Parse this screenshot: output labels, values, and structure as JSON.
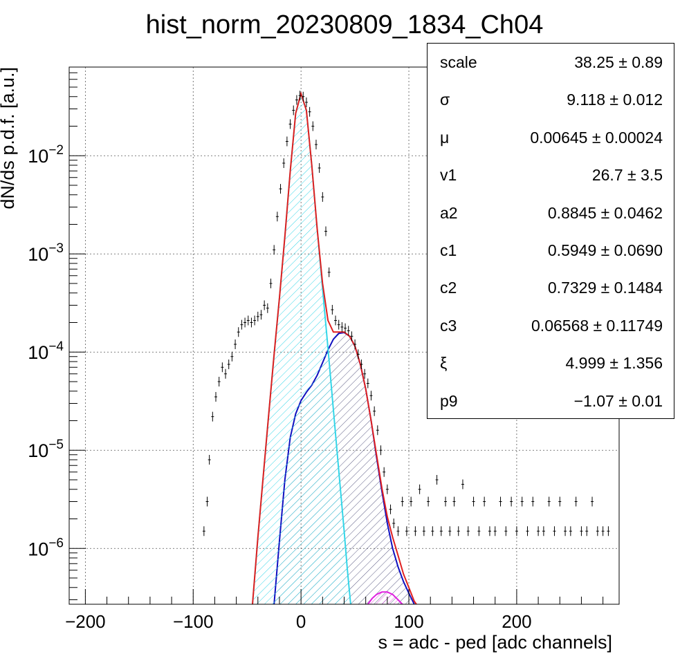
{
  "chart_data": {
    "type": "histogram",
    "title": "hist_norm_20230809_1834_Ch04",
    "xlabel": "s = adc - ped [adc channels]",
    "ylabel": "dN/ds p.d.f. [a.u.]",
    "xlim": [
      -215,
      295
    ],
    "ylim": [
      2.7e-07,
      0.08
    ],
    "yscale": "log",
    "grid": true,
    "xticks": [
      -200,
      -100,
      0,
      100,
      200
    ],
    "xtick_labels": [
      "−200",
      "−100",
      "0",
      "100",
      "200"
    ],
    "yticks": [
      1e-06,
      1e-05,
      0.0001,
      0.001,
      0.01
    ],
    "ytick_labels": [
      {
        "base": "10",
        "exp": "−6"
      },
      {
        "base": "10",
        "exp": "−5"
      },
      {
        "base": "10",
        "exp": "−4"
      },
      {
        "base": "10",
        "exp": "−3"
      },
      {
        "base": "10",
        "exp": "−2"
      }
    ],
    "data_histogram": {
      "color": "#000000",
      "points": [
        [
          -90,
          1.5e-06
        ],
        [
          -87,
          3e-06
        ],
        [
          -85,
          8e-06
        ],
        [
          -82,
          2.2e-05
        ],
        [
          -79,
          3.5e-05
        ],
        [
          -76,
          5e-05
        ],
        [
          -73,
          7e-05
        ],
        [
          -70,
          6e-05
        ],
        [
          -67,
          7.5e-05
        ],
        [
          -64,
          9e-05
        ],
        [
          -61,
          0.00012
        ],
        [
          -58,
          0.00016
        ],
        [
          -55,
          0.00019
        ],
        [
          -52,
          0.0002
        ],
        [
          -49,
          0.00021
        ],
        [
          -46,
          0.0002
        ],
        [
          -43,
          0.00021
        ],
        [
          -40,
          0.00023
        ],
        [
          -37,
          0.00024
        ],
        [
          -34,
          0.0003
        ],
        [
          -31,
          0.00028
        ],
        [
          -28,
          0.0005
        ],
        [
          -25,
          0.0011
        ],
        [
          -22,
          0.0024
        ],
        [
          -19,
          0.0046
        ],
        [
          -16,
          0.0084
        ],
        [
          -13,
          0.014
        ],
        [
          -10,
          0.021
        ],
        [
          -7,
          0.029
        ],
        [
          -4,
          0.037
        ],
        [
          -1,
          0.041
        ],
        [
          2,
          0.04
        ],
        [
          5,
          0.035
        ],
        [
          8,
          0.028
        ],
        [
          11,
          0.02
        ],
        [
          14,
          0.013
        ],
        [
          17,
          0.0075
        ],
        [
          20,
          0.0038
        ],
        [
          23,
          0.0017
        ],
        [
          26,
          0.00065
        ],
        [
          29,
          0.00027
        ],
        [
          32,
          0.00021
        ],
        [
          35,
          0.00019
        ],
        [
          38,
          0.00018
        ],
        [
          41,
          0.000175
        ],
        [
          44,
          0.000165
        ],
        [
          47,
          0.000145
        ],
        [
          50,
          0.00012
        ],
        [
          53,
          9.5e-05
        ],
        [
          56,
          7.5e-05
        ],
        [
          59,
          6e-05
        ],
        [
          62,
          4.8e-05
        ],
        [
          65,
          3.6e-05
        ],
        [
          68,
          2.5e-05
        ],
        [
          71,
          1.6e-05
        ],
        [
          74,
          1e-05
        ],
        [
          77,
          6e-06
        ],
        [
          80,
          4e-06
        ],
        [
          83,
          2.5e-06
        ],
        [
          86,
          1.8e-06
        ],
        [
          90,
          1.5e-06
        ],
        [
          94,
          3e-06
        ],
        [
          98,
          1.5e-06
        ],
        [
          102,
          3e-06
        ],
        [
          106,
          1.5e-06
        ],
        [
          110,
          4e-06
        ],
        [
          114,
          1.5e-06
        ],
        [
          118,
          3e-06
        ],
        [
          122,
          1.5e-06
        ],
        [
          126,
          5e-06
        ],
        [
          130,
          1.5e-06
        ],
        [
          134,
          3e-06
        ],
        [
          138,
          1.5e-06
        ],
        [
          142,
          3e-06
        ],
        [
          146,
          1.5e-06
        ],
        [
          150,
          4.5e-06
        ],
        [
          155,
          1.5e-06
        ],
        [
          160,
          3e-06
        ],
        [
          165,
          1.5e-06
        ],
        [
          170,
          3e-06
        ],
        [
          175,
          1.5e-06
        ],
        [
          180,
          1.5e-06
        ],
        [
          185,
          3e-06
        ],
        [
          190,
          1.5e-06
        ],
        [
          195,
          3e-06
        ],
        [
          200,
          1.5e-06
        ],
        [
          205,
          3e-06
        ],
        [
          210,
          1.5e-06
        ],
        [
          215,
          3e-06
        ],
        [
          220,
          1.5e-06
        ],
        [
          225,
          1.5e-06
        ],
        [
          230,
          3e-06
        ],
        [
          235,
          1.5e-06
        ],
        [
          240,
          3e-06
        ],
        [
          245,
          1.5e-06
        ],
        [
          250,
          1.5e-06
        ],
        [
          255,
          3e-06
        ],
        [
          260,
          1.5e-06
        ],
        [
          265,
          1.5e-06
        ],
        [
          270,
          3e-06
        ],
        [
          275,
          1.5e-06
        ],
        [
          280,
          1.5e-06
        ],
        [
          285,
          1.5e-06
        ]
      ]
    },
    "pedestal_component": {
      "color": "#33d6e8",
      "hatch": true,
      "points": [
        [
          -45,
          2.7e-07
        ],
        [
          -40,
          1.3e-06
        ],
        [
          -35,
          5.5e-06
        ],
        [
          -30,
          2.3e-05
        ],
        [
          -25,
          9.4e-05
        ],
        [
          -20,
          0.00036
        ],
        [
          -15,
          0.0015
        ],
        [
          -10,
          0.007
        ],
        [
          -5,
          0.027
        ],
        [
          0,
          0.043
        ],
        [
          5,
          0.029
        ],
        [
          10,
          0.008
        ],
        [
          15,
          0.0018
        ],
        [
          20,
          0.00044
        ],
        [
          25,
          0.00011
        ],
        [
          30,
          2.6e-05
        ],
        [
          35,
          6.2e-06
        ],
        [
          40,
          1.5e-06
        ],
        [
          43,
          6e-07
        ],
        [
          46,
          2.7e-07
        ]
      ]
    },
    "signal_component": {
      "color": "#1010c0",
      "hatch": true,
      "points": [
        [
          -25,
          2.7e-07
        ],
        [
          -20,
          1.2e-06
        ],
        [
          -15,
          5e-06
        ],
        [
          -10,
          1.35e-05
        ],
        [
          -5,
          2.35e-05
        ],
        [
          0,
          3.2e-05
        ],
        [
          5,
          3.9e-05
        ],
        [
          10,
          4.6e-05
        ],
        [
          15,
          5.8e-05
        ],
        [
          20,
          7.8e-05
        ],
        [
          25,
          0.000105
        ],
        [
          30,
          0.000135
        ],
        [
          35,
          0.000155
        ],
        [
          40,
          0.000158
        ],
        [
          45,
          0.000145
        ],
        [
          50,
          0.000115
        ],
        [
          55,
          7.5e-05
        ],
        [
          60,
          4.2e-05
        ],
        [
          65,
          2e-05
        ],
        [
          70,
          8.5e-06
        ],
        [
          75,
          3.8e-06
        ],
        [
          80,
          1.8e-06
        ],
        [
          85,
          1e-06
        ],
        [
          90,
          6.5e-07
        ],
        [
          95,
          4.6e-07
        ],
        [
          100,
          3.5e-07
        ],
        [
          105,
          2.7e-07
        ]
      ]
    },
    "third_component": {
      "color": "#e020e0",
      "hatch": true,
      "points": [
        [
          62,
          2.7e-07
        ],
        [
          66,
          3.1e-07
        ],
        [
          70,
          3.4e-07
        ],
        [
          75,
          3.6e-07
        ],
        [
          80,
          3.6e-07
        ],
        [
          85,
          3.4e-07
        ],
        [
          90,
          3e-07
        ],
        [
          94,
          2.7e-07
        ]
      ]
    },
    "total_fit": {
      "color": "#e02020",
      "points": [
        [
          -45,
          2.7e-07
        ],
        [
          -40,
          1.3e-06
        ],
        [
          -35,
          5.5e-06
        ],
        [
          -30,
          2.3e-05
        ],
        [
          -25,
          9.4e-05
        ],
        [
          -20,
          0.00036
        ],
        [
          -15,
          0.0015
        ],
        [
          -10,
          0.007
        ],
        [
          -5,
          0.027
        ],
        [
          0,
          0.043
        ],
        [
          5,
          0.029
        ],
        [
          10,
          0.008
        ],
        [
          15,
          0.0018
        ],
        [
          20,
          0.0005
        ],
        [
          25,
          0.00021
        ],
        [
          30,
          0.00016
        ],
        [
          35,
          0.00016
        ],
        [
          40,
          0.00016
        ],
        [
          45,
          0.000145
        ],
        [
          50,
          0.000115
        ],
        [
          55,
          7.5e-05
        ],
        [
          60,
          4.2e-05
        ],
        [
          65,
          2e-05
        ],
        [
          70,
          9e-06
        ],
        [
          75,
          4.1e-06
        ],
        [
          80,
          2.1e-06
        ],
        [
          85,
          1.3e-06
        ],
        [
          90,
          8.5e-07
        ],
        [
          95,
          5.5e-07
        ],
        [
          100,
          4e-07
        ],
        [
          105,
          2.9e-07
        ],
        [
          107,
          2.7e-07
        ]
      ]
    }
  },
  "stats_box": {
    "rows": [
      {
        "name": "scale",
        "value": "38.25 ± 0.89"
      },
      {
        "name": "σ",
        "value": "9.118 ± 0.012"
      },
      {
        "name": "μ",
        "value": "0.00645 ± 0.00024"
      },
      {
        "name": "v1",
        "value": "26.7 ± 3.5"
      },
      {
        "name": "a2",
        "value": "0.8845 ± 0.0462"
      },
      {
        "name": "c1",
        "value": "0.5949 ± 0.0690"
      },
      {
        "name": "c2",
        "value": "0.7329 ± 0.1484"
      },
      {
        "name": "c3",
        "value": "0.06568 ± 0.11749"
      },
      {
        "name": "ξ",
        "value": "4.999 ± 1.356"
      },
      {
        "name": "p9",
        "value": "−1.07 ± 0.01"
      }
    ]
  }
}
